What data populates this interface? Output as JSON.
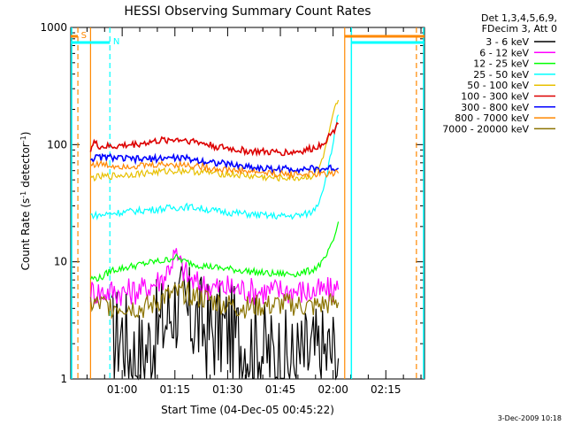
{
  "chart_data": {
    "type": "line",
    "title": "HESSI Observing Summary Count Rates",
    "xlabel": "Start Time (04-Dec-05 00:45:22)",
    "ylabel": "Count Rate (s⁻¹ detector⁻¹)",
    "yscale": "log",
    "ylim": [
      1,
      1000
    ],
    "xlim_minutes": [
      45.37,
      146.0
    ],
    "x_ticks": [
      {
        "label": "01:00",
        "value": 60
      },
      {
        "label": "01:15",
        "value": 75
      },
      {
        "label": "01:30",
        "value": 90
      },
      {
        "label": "01:45",
        "value": 105
      },
      {
        "label": "02:00",
        "value": 120
      },
      {
        "label": "02:15",
        "value": 135
      }
    ],
    "y_ticks": [
      {
        "label": "1",
        "value": 1
      },
      {
        "label": "10",
        "value": 10
      },
      {
        "label": "100",
        "value": 100
      },
      {
        "label": "1000",
        "value": 1000
      }
    ],
    "legend_header": [
      "Det 1,3,4,5,6,9,",
      "FDecim 3, Att 0"
    ],
    "series": [
      {
        "name": "3 - 6 keV",
        "color": "#000000",
        "x": [
          57,
          60,
          63,
          66,
          69,
          72,
          75,
          78,
          81,
          84,
          87,
          90,
          93,
          96,
          99,
          102,
          105,
          108,
          111,
          114,
          117,
          120,
          121.5
        ],
        "y": [
          2.2,
          2.6,
          1.6,
          1.6,
          2.4,
          3.0,
          4.5,
          3.5,
          3.2,
          2.6,
          2.6,
          2.6,
          2.2,
          2.0,
          1.9,
          1.6,
          1.5,
          1.4,
          1.5,
          1.6,
          1.6,
          1.7,
          1.5
        ]
      },
      {
        "name": "6 - 12 keV",
        "color": "#ff00ff",
        "x": [
          51,
          54,
          57,
          60,
          63,
          66,
          69,
          72,
          75,
          77,
          79,
          81,
          84,
          87,
          90,
          93,
          96,
          99,
          102,
          105,
          108,
          111,
          114,
          117,
          120,
          121.5
        ],
        "y": [
          5.6,
          5.5,
          5.6,
          5.5,
          5.6,
          5.8,
          6.5,
          7.5,
          11.5,
          9,
          7.2,
          6.5,
          6.2,
          6.0,
          6.0,
          5.9,
          5.7,
          5.6,
          5.6,
          5.7,
          5.6,
          5.6,
          5.5,
          5.6,
          5.7,
          5.8
        ]
      },
      {
        "name": "12 - 25 keV",
        "color": "#00ff00",
        "x": [
          51,
          54,
          57,
          60,
          63,
          66,
          69,
          72,
          75,
          78,
          81,
          84,
          87,
          90,
          93,
          96,
          99,
          102,
          105,
          108,
          111,
          114,
          117,
          119,
          120.5,
          121.5
        ],
        "y": [
          7.2,
          7.3,
          8.5,
          8.8,
          9.2,
          9.6,
          10.0,
          10.2,
          11.0,
          10.0,
          9.5,
          9.2,
          8.9,
          8.7,
          8.5,
          8.3,
          8.1,
          7.9,
          7.9,
          7.9,
          8.0,
          8.5,
          9.8,
          12.5,
          16.5,
          22
        ]
      },
      {
        "name": "25 - 50 keV",
        "color": "#00ffff",
        "x": [
          51,
          54,
          57,
          60,
          63,
          66,
          69,
          72,
          75,
          78,
          81,
          84,
          87,
          90,
          93,
          96,
          99,
          102,
          105,
          108,
          111,
          114,
          116,
          118,
          119.5,
          120.5,
          121.5
        ],
        "y": [
          25,
          25,
          26,
          26.5,
          27,
          27.5,
          28,
          28.5,
          29,
          29.5,
          29,
          28,
          27,
          26.5,
          26,
          25.5,
          25,
          24.7,
          24.5,
          24.6,
          25,
          26.5,
          33,
          52,
          85,
          130,
          180
        ]
      },
      {
        "name": "50 - 100 keV",
        "color": "#e8c000",
        "x": [
          51,
          54,
          57,
          60,
          63,
          66,
          69,
          72,
          75,
          78,
          81,
          84,
          87,
          90,
          93,
          96,
          99,
          102,
          105,
          108,
          111,
          114,
          116,
          118,
          119.5,
          120.5,
          121.5
        ],
        "y": [
          52,
          53,
          54,
          55,
          56,
          57,
          58,
          59,
          60,
          60,
          59,
          58,
          57,
          56,
          55,
          54,
          53,
          52,
          52,
          52,
          52,
          54,
          62,
          95,
          150,
          200,
          240
        ]
      },
      {
        "name": "100 - 300 keV",
        "color": "#dd0000",
        "x": [
          51,
          52,
          53,
          54,
          57,
          60,
          63,
          66,
          69,
          72,
          75,
          78,
          81,
          84,
          87,
          90,
          93,
          96,
          99,
          102,
          105,
          108,
          111,
          114,
          116,
          118,
          120,
          121.5
        ],
        "y": [
          92,
          105,
          98,
          96,
          96,
          98,
          100,
          103,
          106,
          109,
          111,
          110,
          106,
          101,
          96,
          93,
          90,
          88,
          87,
          86,
          86,
          86,
          88,
          92,
          98,
          110,
          130,
          150
        ]
      },
      {
        "name": "300 - 800 keV",
        "color": "#0000ff",
        "x": [
          51,
          54,
          57,
          60,
          63,
          66,
          69,
          72,
          75,
          78,
          81,
          84,
          87,
          90,
          93,
          96,
          99,
          102,
          105,
          108,
          111,
          114,
          117,
          120,
          121.5
        ],
        "y": [
          76,
          78,
          78,
          76,
          75,
          75,
          76,
          77,
          77,
          76,
          74,
          72,
          70,
          68,
          66,
          65,
          63,
          62,
          62,
          62,
          62,
          62,
          62,
          63,
          63
        ]
      },
      {
        "name": "800 - 7000 keV",
        "color": "#ff8800",
        "x": [
          51,
          54,
          57,
          60,
          63,
          66,
          69,
          72,
          75,
          78,
          81,
          84,
          87,
          90,
          93,
          96,
          99,
          102,
          105,
          108,
          111,
          114,
          117,
          120,
          121.5
        ],
        "y": [
          68,
          68,
          66,
          66,
          66,
          66,
          67,
          68,
          68,
          67,
          66,
          64,
          62,
          61,
          60,
          59,
          58,
          57,
          56,
          56,
          56,
          56,
          56,
          57,
          57
        ]
      },
      {
        "name": "7000 - 20000 keV",
        "color": "#8b7300",
        "x": [
          51,
          54,
          57,
          60,
          63,
          66,
          69,
          72,
          75,
          78,
          81,
          84,
          87,
          90,
          93,
          96,
          99,
          102,
          105,
          108,
          111,
          114,
          117,
          120,
          121.5
        ],
        "y": [
          4.4,
          4.3,
          4.2,
          4.2,
          4.1,
          4.0,
          4.3,
          5.0,
          5.3,
          5.5,
          5.0,
          4.8,
          4.5,
          4.3,
          4.1,
          4.1,
          4.2,
          4.2,
          4.3,
          4.3,
          4.2,
          4.1,
          4.3,
          4.4,
          4.5
        ]
      }
    ],
    "annotations": [
      {
        "label": "S",
        "color": "#ff8800"
      },
      {
        "label": "N",
        "color": "#00ffff"
      }
    ],
    "footer": "3-Dec-2009 10:18"
  }
}
